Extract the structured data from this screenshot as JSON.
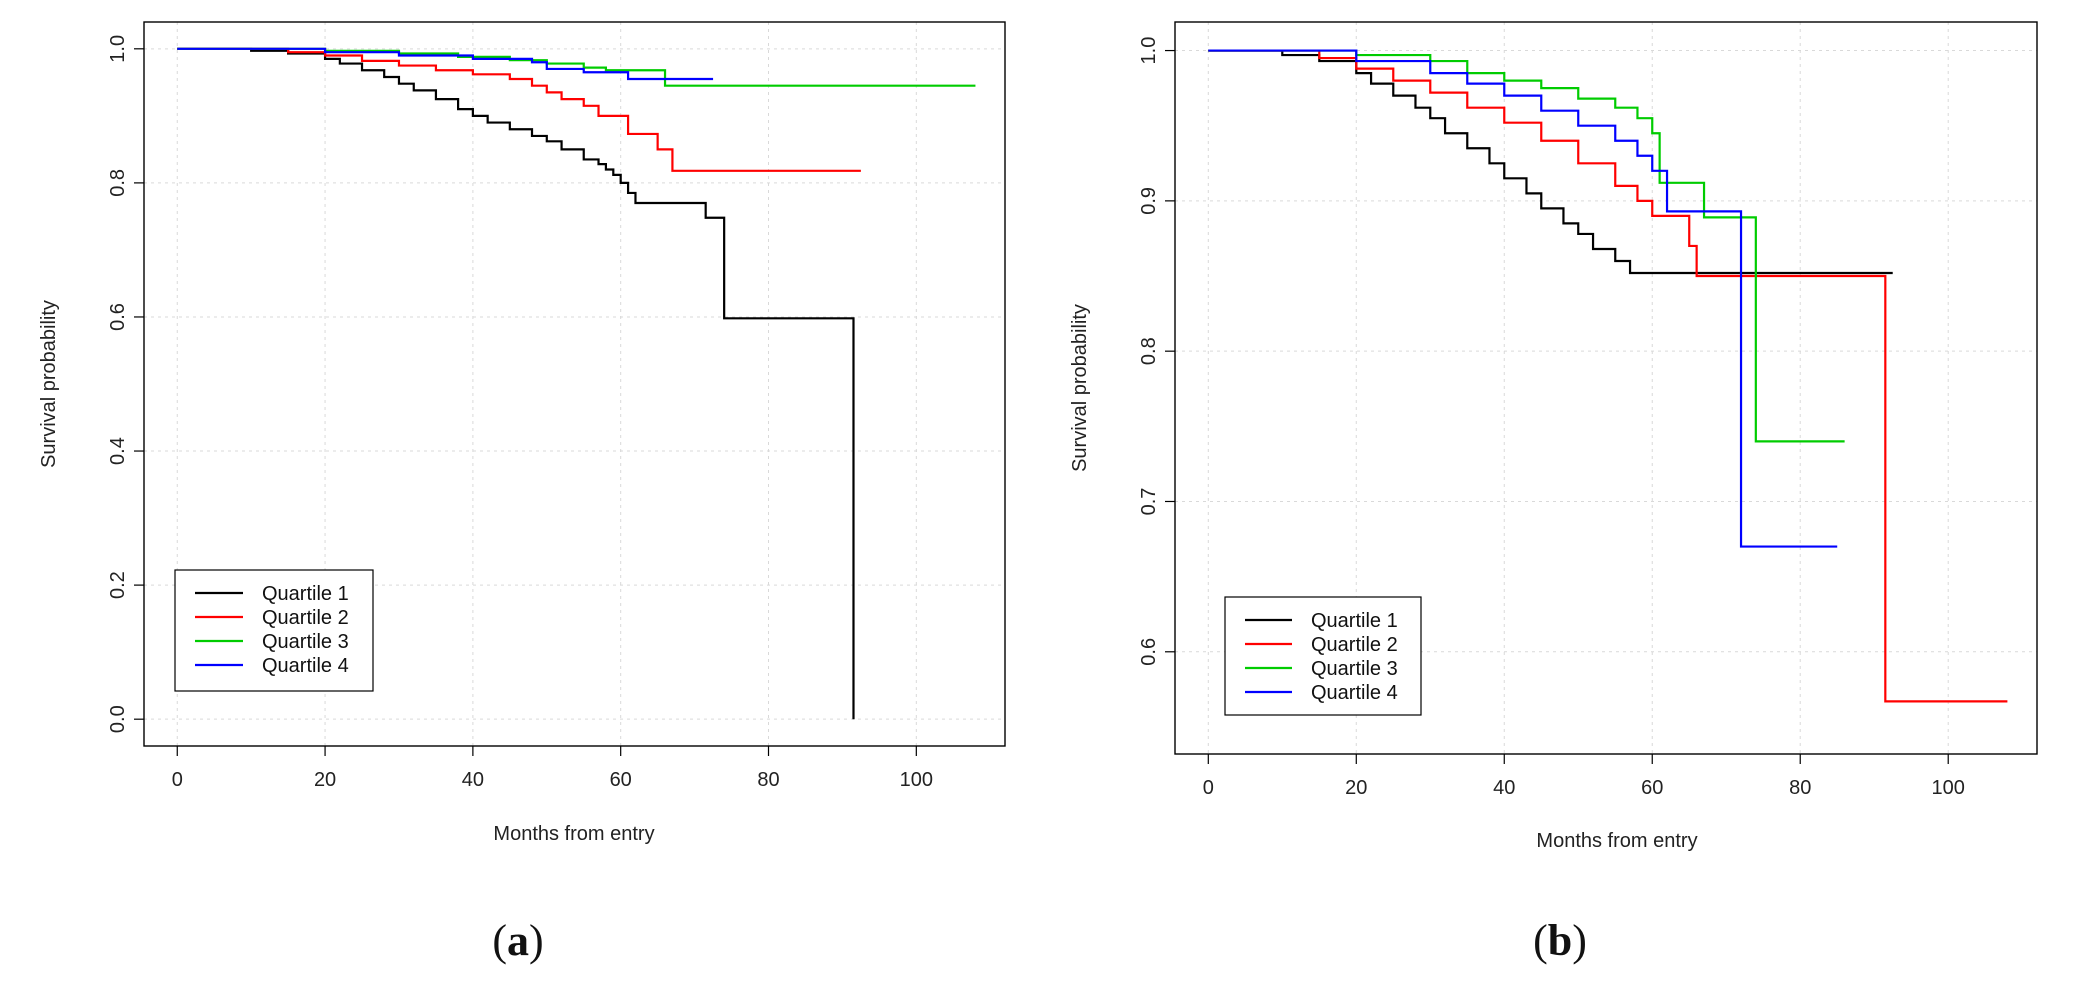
{
  "chart_data": [
    {
      "type": "line",
      "panel_label": "a",
      "title": "",
      "xlabel": "Months from entry",
      "ylabel": "Survival probability",
      "xlim": [
        -4.5,
        112
      ],
      "ylim": [
        -0.04,
        1.04
      ],
      "x_ticks": [
        0,
        20,
        40,
        60,
        80,
        100
      ],
      "y_ticks": [
        0.0,
        0.2,
        0.4,
        0.6,
        0.8,
        1.0
      ],
      "x_tick_labels": [
        "0",
        "20",
        "40",
        "60",
        "80",
        "100"
      ],
      "y_tick_labels": [
        "0.0",
        "0.2",
        "0.4",
        "0.6",
        "0.8",
        "1.0"
      ],
      "grid": true,
      "legend_position": "bottom-left",
      "step": true,
      "series": [
        {
          "name": "Quartile 1",
          "color": "#000000",
          "x": [
            0,
            10,
            15,
            20,
            22,
            25,
            28,
            30,
            32,
            35,
            38,
            40,
            42,
            45,
            48,
            50,
            52,
            55,
            57,
            58,
            59,
            60,
            61,
            62,
            71.5,
            74,
            91.5,
            91.5
          ],
          "y": [
            1.0,
            0.997,
            0.993,
            0.985,
            0.978,
            0.968,
            0.958,
            0.948,
            0.938,
            0.925,
            0.91,
            0.9,
            0.89,
            0.88,
            0.87,
            0.862,
            0.85,
            0.835,
            0.828,
            0.82,
            0.812,
            0.8,
            0.785,
            0.77,
            0.748,
            0.598,
            0.448,
            0.0
          ]
        },
        {
          "name": "Quartile 2",
          "color": "#ff0000",
          "x": [
            0,
            15,
            20,
            25,
            30,
            35,
            40,
            45,
            48,
            50,
            52,
            55,
            57,
            61,
            65,
            67,
            92.5
          ],
          "y": [
            1.0,
            0.995,
            0.99,
            0.982,
            0.975,
            0.968,
            0.962,
            0.955,
            0.945,
            0.935,
            0.925,
            0.915,
            0.9,
            0.873,
            0.85,
            0.818,
            0.818
          ]
        },
        {
          "name": "Quartile 3",
          "color": "#00cc00",
          "x": [
            0,
            20,
            30,
            38,
            45,
            50,
            55,
            58,
            66,
            108
          ],
          "y": [
            1.0,
            0.997,
            0.993,
            0.988,
            0.983,
            0.978,
            0.972,
            0.968,
            0.945,
            0.945
          ]
        },
        {
          "name": "Quartile 4",
          "color": "#0000ff",
          "x": [
            0,
            20,
            30,
            40,
            48,
            50,
            55,
            61,
            72.5
          ],
          "y": [
            1.0,
            0.995,
            0.99,
            0.985,
            0.98,
            0.97,
            0.965,
            0.955,
            0.955
          ]
        }
      ]
    },
    {
      "type": "line",
      "panel_label": "b",
      "title": "",
      "xlabel": "Months from entry",
      "ylabel": "Survival probability",
      "xlim": [
        -4.5,
        112
      ],
      "ylim": [
        0.532,
        1.019
      ],
      "x_ticks": [
        0,
        20,
        40,
        60,
        80,
        100
      ],
      "y_ticks": [
        0.6,
        0.7,
        0.8,
        0.9,
        1.0
      ],
      "x_tick_labels": [
        "0",
        "20",
        "40",
        "60",
        "80",
        "100"
      ],
      "y_tick_labels": [
        "0.6",
        "0.7",
        "0.8",
        "0.9",
        "1.0"
      ],
      "grid": true,
      "legend_position": "bottom-left",
      "step": true,
      "series": [
        {
          "name": "Quartile 1",
          "color": "#000000",
          "x": [
            0,
            10,
            15,
            20,
            22,
            25,
            28,
            30,
            32,
            35,
            38,
            40,
            43,
            45,
            48,
            50,
            52,
            55,
            57,
            92.5
          ],
          "y": [
            1.0,
            0.997,
            0.993,
            0.985,
            0.978,
            0.97,
            0.962,
            0.955,
            0.945,
            0.935,
            0.925,
            0.915,
            0.905,
            0.895,
            0.885,
            0.878,
            0.868,
            0.86,
            0.852,
            0.852
          ]
        },
        {
          "name": "Quartile 2",
          "color": "#ff0000",
          "x": [
            0,
            15,
            20,
            25,
            30,
            35,
            40,
            45,
            50,
            55,
            58,
            60,
            65,
            66,
            91.5,
            108
          ],
          "y": [
            1.0,
            0.995,
            0.988,
            0.98,
            0.972,
            0.962,
            0.952,
            0.94,
            0.925,
            0.91,
            0.9,
            0.89,
            0.87,
            0.85,
            0.567,
            0.567
          ]
        },
        {
          "name": "Quartile 3",
          "color": "#00cc00",
          "x": [
            0,
            20,
            30,
            35,
            40,
            45,
            50,
            55,
            58,
            60,
            61,
            67,
            74,
            86
          ],
          "y": [
            1.0,
            0.997,
            0.993,
            0.985,
            0.98,
            0.975,
            0.968,
            0.962,
            0.955,
            0.945,
            0.912,
            0.889,
            0.74,
            0.74
          ]
        },
        {
          "name": "Quartile 4",
          "color": "#0000ff",
          "x": [
            0,
            20,
            30,
            35,
            40,
            45,
            50,
            55,
            58,
            60,
            62,
            72,
            85
          ],
          "y": [
            1.0,
            0.993,
            0.985,
            0.978,
            0.97,
            0.96,
            0.95,
            0.94,
            0.93,
            0.92,
            0.893,
            0.67,
            0.67
          ]
        }
      ]
    }
  ]
}
